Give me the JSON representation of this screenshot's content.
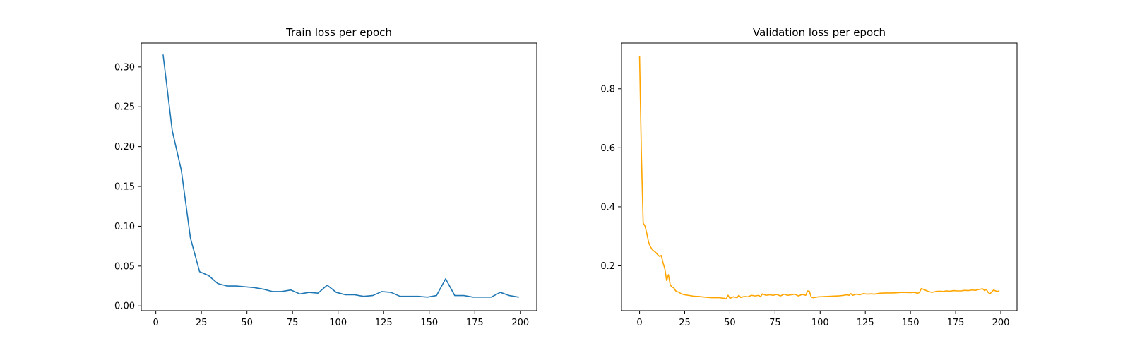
{
  "chart_data": [
    {
      "type": "line",
      "title": "Train loss per epoch",
      "xlabel": "",
      "ylabel": "",
      "xlim": [
        -8,
        209
      ],
      "ylim": [
        -0.006,
        0.33
      ],
      "x_ticks": [
        0,
        25,
        50,
        75,
        100,
        125,
        150,
        175,
        200
      ],
      "x_tick_labels": [
        "0",
        "25",
        "50",
        "75",
        "100",
        "125",
        "150",
        "175",
        "200"
      ],
      "y_ticks": [
        0.0,
        0.05,
        0.1,
        0.15,
        0.2,
        0.25,
        0.3
      ],
      "y_tick_labels": [
        "0.00",
        "0.05",
        "0.10",
        "0.15",
        "0.20",
        "0.25",
        "0.30"
      ],
      "grid": false,
      "series": [
        {
          "color": "#1f77b4",
          "x": [
            4,
            9,
            14,
            19,
            24,
            29,
            34,
            39,
            44,
            49,
            54,
            59,
            64,
            69,
            74,
            79,
            84,
            89,
            94,
            99,
            104,
            109,
            114,
            119,
            124,
            129,
            134,
            139,
            144,
            149,
            154,
            159,
            164,
            169,
            174,
            179,
            184,
            189,
            194,
            199
          ],
          "y": [
            0.315,
            0.22,
            0.17,
            0.085,
            0.043,
            0.038,
            0.028,
            0.025,
            0.025,
            0.024,
            0.023,
            0.021,
            0.018,
            0.018,
            0.02,
            0.015,
            0.017,
            0.016,
            0.026,
            0.017,
            0.014,
            0.014,
            0.012,
            0.013,
            0.018,
            0.017,
            0.012,
            0.012,
            0.012,
            0.011,
            0.013,
            0.034,
            0.013,
            0.013,
            0.011,
            0.011,
            0.011,
            0.017,
            0.013,
            0.011
          ]
        }
      ]
    },
    {
      "type": "line",
      "title": "Validation loss per epoch",
      "xlabel": "",
      "ylabel": "",
      "xlim": [
        -10,
        209
      ],
      "ylim": [
        0.048,
        0.955
      ],
      "x_ticks": [
        0,
        25,
        50,
        75,
        100,
        125,
        150,
        175,
        200
      ],
      "x_tick_labels": [
        "0",
        "25",
        "50",
        "75",
        "100",
        "125",
        "150",
        "175",
        "200"
      ],
      "y_ticks": [
        0.2,
        0.4,
        0.6,
        0.8
      ],
      "y_tick_labels": [
        "0.2",
        "0.4",
        "0.6",
        "0.8"
      ],
      "grid": false,
      "series": [
        {
          "color": "#ffa500",
          "x": [
            0,
            1,
            2,
            3,
            4,
            5,
            6,
            7,
            8,
            9,
            10,
            11,
            12,
            13,
            14,
            15,
            16,
            17,
            18,
            19,
            20,
            21,
            22,
            23,
            25,
            27,
            30,
            33,
            36,
            40,
            44,
            47,
            48,
            49,
            50,
            52,
            54,
            55,
            56,
            58,
            60,
            62,
            64,
            66,
            67,
            68,
            70,
            72,
            74,
            76,
            78,
            80,
            82,
            84,
            86,
            88,
            90,
            92,
            93,
            94,
            95,
            96,
            97,
            99,
            100,
            103,
            106,
            110,
            113,
            115,
            116,
            117,
            118,
            120,
            122,
            124,
            126,
            128,
            130,
            133,
            136,
            140,
            143,
            146,
            150,
            152,
            154,
            155,
            156,
            158,
            160,
            162,
            164,
            166,
            168,
            170,
            172,
            174,
            176,
            178,
            180,
            182,
            184,
            186,
            188,
            190,
            191,
            192,
            193,
            194,
            196,
            198,
            199
          ],
          "y": [
            0.91,
            0.58,
            0.345,
            0.335,
            0.31,
            0.28,
            0.265,
            0.255,
            0.25,
            0.245,
            0.238,
            0.232,
            0.235,
            0.21,
            0.19,
            0.15,
            0.17,
            0.135,
            0.128,
            0.125,
            0.115,
            0.112,
            0.11,
            0.105,
            0.102,
            0.1,
            0.097,
            0.096,
            0.094,
            0.092,
            0.092,
            0.09,
            0.088,
            0.1,
            0.09,
            0.095,
            0.092,
            0.1,
            0.093,
            0.096,
            0.095,
            0.1,
            0.098,
            0.1,
            0.095,
            0.105,
            0.1,
            0.102,
            0.1,
            0.103,
            0.098,
            0.104,
            0.1,
            0.102,
            0.104,
            0.098,
            0.103,
            0.1,
            0.115,
            0.114,
            0.095,
            0.092,
            0.093,
            0.095,
            0.095,
            0.096,
            0.097,
            0.098,
            0.1,
            0.102,
            0.1,
            0.106,
            0.1,
            0.104,
            0.102,
            0.106,
            0.104,
            0.105,
            0.104,
            0.107,
            0.108,
            0.108,
            0.109,
            0.11,
            0.109,
            0.11,
            0.107,
            0.11,
            0.123,
            0.118,
            0.113,
            0.11,
            0.113,
            0.114,
            0.113,
            0.115,
            0.114,
            0.116,
            0.115,
            0.115,
            0.117,
            0.116,
            0.118,
            0.117,
            0.12,
            0.122,
            0.116,
            0.12,
            0.11,
            0.105,
            0.118,
            0.113,
            0.115
          ]
        }
      ]
    }
  ]
}
